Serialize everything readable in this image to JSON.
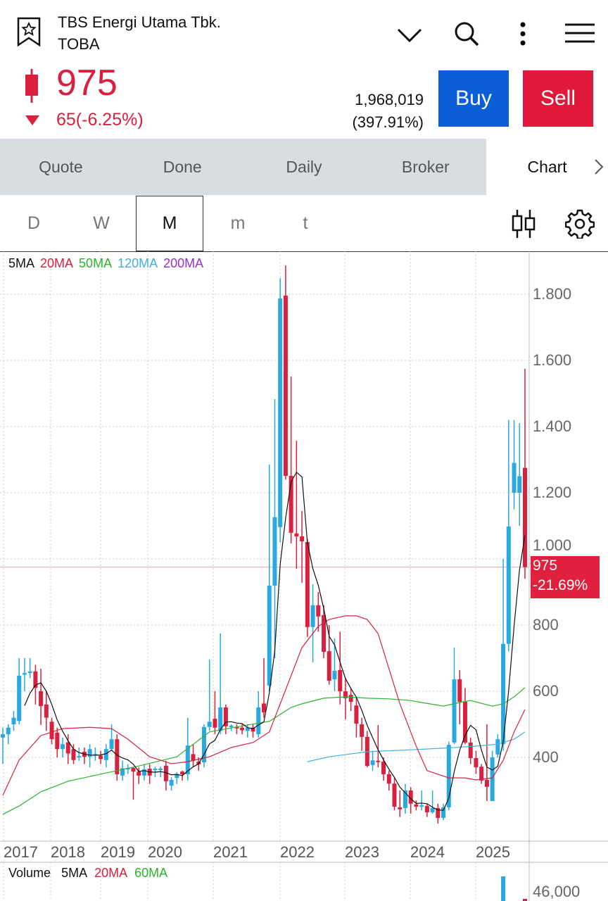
{
  "header": {
    "title": "TBS Energi Utama Tbk.",
    "code": "TOBA",
    "price": "975",
    "change": "65(-6.25%)",
    "volume": "1,968,019",
    "volume_pct": "(397.91%)",
    "buy": "Buy",
    "sell": "Sell",
    "icons": [
      "star-icon",
      "chevron-down-icon",
      "search-icon",
      "more-icon",
      "menu-icon"
    ]
  },
  "tabs": [
    "Quote",
    "Done",
    "Daily",
    "Broker",
    "Chart"
  ],
  "active_tab": "Chart",
  "timeframes": [
    "D",
    "W",
    "M",
    "m",
    "t"
  ],
  "selected_timeframe": "M",
  "colors": {
    "up": "#29a9e1",
    "down": "#d9203e",
    "buy": "#0a5fd8",
    "sell": "#e0193a",
    "ma5": "#111111",
    "ma20": "#d9203e",
    "ma50": "#2bb52b",
    "ma120": "#3fb0e0",
    "ma200": "#9b2fc9"
  },
  "chart_data": {
    "type": "candlestick",
    "legend": [
      "5MA",
      "20MA",
      "50MA",
      "120MA",
      "200MA"
    ],
    "y_ticks": [
      1800,
      1600,
      1400,
      1200,
      1000,
      800,
      600,
      400
    ],
    "ylim": [
      150,
      1900
    ],
    "x_ticks": [
      "2017",
      "2018",
      "2019",
      "2020",
      "2021",
      "2022",
      "2023",
      "2024",
      "2025"
    ],
    "last_price": "975",
    "last_change": "-21.69%",
    "candles": [
      [
        460,
        490,
        380,
        470
      ],
      [
        470,
        500,
        440,
        490
      ],
      [
        500,
        540,
        480,
        520
      ],
      [
        510,
        700,
        500,
        647
      ],
      [
        650,
        700,
        600,
        655
      ],
      [
        655,
        700,
        640,
        660
      ],
      [
        660,
        680,
        560,
        610
      ],
      [
        600,
        668,
        498,
        555
      ],
      [
        560,
        600,
        480,
        520
      ],
      [
        508,
        520,
        440,
        455
      ],
      [
        475,
        490,
        400,
        425
      ],
      [
        425,
        460,
        400,
        440
      ],
      [
        445,
        470,
        380,
        412
      ],
      [
        425,
        440,
        380,
        392
      ],
      [
        404,
        430,
        390,
        404
      ],
      [
        417,
        430,
        380,
        402
      ],
      [
        402,
        440,
        370,
        425
      ],
      [
        410,
        430,
        390,
        410
      ],
      [
        405,
        420,
        380,
        395
      ],
      [
        392,
        440,
        370,
        425
      ],
      [
        425,
        500,
        420,
        455
      ],
      [
        455,
        470,
        330,
        349
      ],
      [
        345,
        390,
        330,
        367
      ],
      [
        368,
        380,
        350,
        368
      ],
      [
        368,
        370,
        272,
        357
      ],
      [
        357,
        370,
        320,
        345
      ],
      [
        345,
        380,
        330,
        364
      ],
      [
        366,
        380,
        320,
        345
      ],
      [
        366,
        372,
        340,
        366
      ],
      [
        366,
        372,
        340,
        366
      ],
      [
        375,
        390,
        300,
        328
      ],
      [
        315,
        340,
        300,
        332
      ],
      [
        338,
        355,
        320,
        350
      ],
      [
        357,
        360,
        330,
        349
      ],
      [
        349,
        520,
        330,
        436
      ],
      [
        410,
        440,
        370,
        390
      ],
      [
        387,
        400,
        360,
        379
      ],
      [
        385,
        500,
        370,
        492
      ],
      [
        492,
        696,
        480,
        508
      ],
      [
        517,
        600,
        470,
        490
      ],
      [
        480,
        775,
        470,
        551
      ],
      [
        551,
        560,
        470,
        494
      ],
      [
        494,
        500,
        480,
        496
      ],
      [
        492,
        500,
        470,
        488
      ],
      [
        490,
        500,
        470,
        482
      ],
      [
        480,
        500,
        460,
        490
      ],
      [
        490,
        500,
        460,
        478
      ],
      [
        470,
        600,
        460,
        551
      ],
      [
        563,
        700,
        520,
        536
      ],
      [
        617,
        1285,
        600,
        919
      ],
      [
        919,
        1483,
        700,
        1126
      ],
      [
        1096,
        1849,
        1050,
        1787
      ],
      [
        1796,
        1887,
        1240,
        1251
      ],
      [
        1251,
        1551,
        1047,
        1079
      ],
      [
        1077,
        1357,
        970,
        1068
      ],
      [
        1068,
        1145,
        928,
        1053
      ],
      [
        1051,
        1060,
        764,
        794
      ],
      [
        794,
        923,
        687,
        860
      ],
      [
        860,
        900,
        780,
        826
      ],
      [
        830,
        860,
        700,
        719
      ],
      [
        721,
        800,
        620,
        632
      ],
      [
        636,
        760,
        600,
        662
      ],
      [
        664,
        780,
        560,
        600
      ],
      [
        600,
        640,
        515,
        579
      ],
      [
        589,
        610,
        540,
        568
      ],
      [
        557,
        580,
        460,
        502
      ],
      [
        500,
        520,
        420,
        462
      ],
      [
        462,
        480,
        370,
        374
      ],
      [
        377,
        420,
        360,
        391
      ],
      [
        390,
        498,
        370,
        386
      ],
      [
        387,
        400,
        330,
        349
      ],
      [
        349,
        360,
        300,
        321
      ],
      [
        321,
        340,
        240,
        251
      ],
      [
        249,
        300,
        220,
        243
      ],
      [
        247,
        320,
        230,
        300
      ],
      [
        300,
        310,
        230,
        260
      ],
      [
        258,
        270,
        240,
        251
      ],
      [
        255,
        300,
        240,
        255
      ],
      [
        253,
        260,
        220,
        234
      ],
      [
        234,
        300,
        230,
        247
      ],
      [
        247,
        260,
        200,
        217
      ],
      [
        217,
        260,
        210,
        249
      ],
      [
        249,
        448,
        240,
        438
      ],
      [
        445,
        732,
        440,
        636
      ],
      [
        636,
        664,
        500,
        568
      ],
      [
        568,
        610,
        440,
        445
      ],
      [
        445,
        460,
        380,
        398
      ],
      [
        398,
        420,
        350,
        370
      ],
      [
        372,
        380,
        320,
        330
      ],
      [
        332,
        500,
        268,
        311
      ],
      [
        268,
        420,
        268,
        400
      ],
      [
        409,
        470,
        400,
        455
      ],
      [
        440,
        1000,
        420,
        743
      ],
      [
        743,
        1420,
        720,
        1098
      ],
      [
        1200,
        1420,
        1150,
        1290
      ],
      [
        1200,
        1410,
        1100,
        1250
      ],
      [
        1275,
        1575,
        940,
        975
      ]
    ],
    "ma20": [
      [
        0,
        285
      ],
      [
        3,
        392
      ],
      [
        7,
        466
      ],
      [
        11,
        487
      ],
      [
        16,
        491
      ],
      [
        20,
        487
      ],
      [
        23,
        455
      ],
      [
        27,
        402
      ],
      [
        31,
        381
      ],
      [
        34,
        387
      ],
      [
        38,
        402
      ],
      [
        42,
        430
      ],
      [
        46,
        445
      ],
      [
        49,
        477
      ],
      [
        51,
        562
      ],
      [
        53,
        647
      ],
      [
        55,
        732
      ],
      [
        58,
        796
      ],
      [
        60,
        817
      ],
      [
        63,
        828
      ],
      [
        65,
        828
      ],
      [
        67,
        817
      ],
      [
        69,
        774
      ],
      [
        71,
        668
      ],
      [
        73,
        562
      ],
      [
        76,
        434
      ],
      [
        78,
        360
      ],
      [
        80,
        349
      ],
      [
        82,
        338
      ],
      [
        85,
        338
      ],
      [
        87,
        332
      ],
      [
        90,
        338
      ],
      [
        92,
        391
      ],
      [
        94,
        477
      ],
      [
        96,
        545
      ]
    ],
    "ma50": [
      [
        0,
        228
      ],
      [
        3,
        253
      ],
      [
        7,
        296
      ],
      [
        12,
        328
      ],
      [
        19,
        353
      ],
      [
        25,
        374
      ],
      [
        32,
        402
      ],
      [
        38,
        477
      ],
      [
        45,
        498
      ],
      [
        49,
        509
      ],
      [
        51,
        530
      ],
      [
        53,
        551
      ],
      [
        55,
        562
      ],
      [
        59,
        579
      ],
      [
        63,
        583
      ],
      [
        67,
        579
      ],
      [
        71,
        577
      ],
      [
        75,
        572
      ],
      [
        77,
        566
      ],
      [
        81,
        555
      ],
      [
        84,
        566
      ],
      [
        86,
        572
      ],
      [
        90,
        555
      ],
      [
        92,
        562
      ],
      [
        94,
        583
      ],
      [
        96,
        611
      ]
    ],
    "ma120": [
      [
        56,
        387
      ],
      [
        60,
        402
      ],
      [
        67,
        417
      ],
      [
        75,
        423
      ],
      [
        81,
        428
      ],
      [
        87,
        434
      ],
      [
        91,
        440
      ],
      [
        94,
        455
      ],
      [
        96,
        477
      ]
    ]
  },
  "volume_panel": {
    "legend": [
      "Volume",
      "5MA",
      "20MA",
      "60MA"
    ],
    "y_tick": "46,000"
  }
}
